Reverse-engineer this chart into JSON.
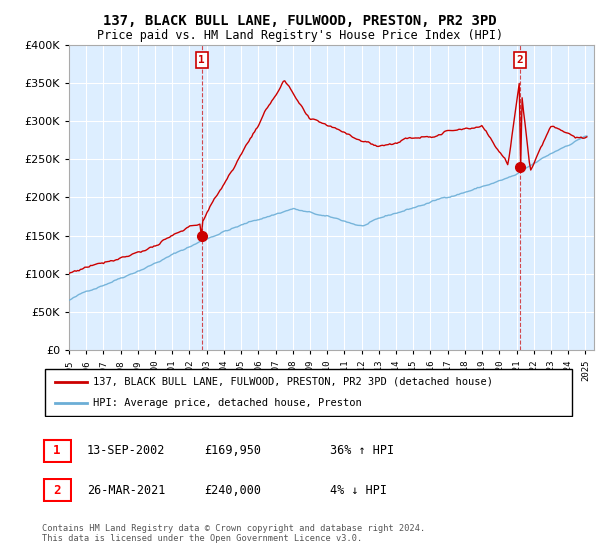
{
  "title": "137, BLACK BULL LANE, FULWOOD, PRESTON, PR2 3PD",
  "subtitle": "Price paid vs. HM Land Registry's House Price Index (HPI)",
  "legend_line1": "137, BLACK BULL LANE, FULWOOD, PRESTON, PR2 3PD (detached house)",
  "legend_line2": "HPI: Average price, detached house, Preston",
  "transaction1_date": "13-SEP-2002",
  "transaction1_price": "£169,950",
  "transaction1_hpi": "36% ↑ HPI",
  "transaction2_date": "26-MAR-2021",
  "transaction2_price": "£240,000",
  "transaction2_hpi": "4% ↓ HPI",
  "footer": "Contains HM Land Registry data © Crown copyright and database right 2024.\nThis data is licensed under the Open Government Licence v3.0.",
  "hpi_color": "#6baed6",
  "price_color": "#cc0000",
  "plot_bg_color": "#ddeeff",
  "ylim": [
    0,
    400000
  ],
  "yticks": [
    0,
    50000,
    100000,
    150000,
    200000,
    250000,
    300000,
    350000,
    400000
  ],
  "start_year": 1995,
  "end_year": 2025,
  "t1_year": 2002.708,
  "t2_year": 2021.208
}
